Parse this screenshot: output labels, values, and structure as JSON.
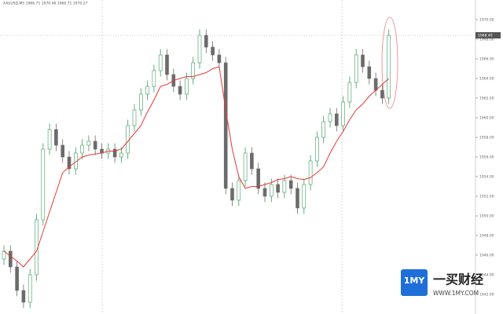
{
  "chart_data": {
    "type": "candlestick",
    "title": "XAUUSD,M5  1966.71 1970.46 1966.71 1970.27",
    "up_color": "#3c9a5f",
    "down_color": "#6b6b6b",
    "ma_color": "#e53935",
    "ylim": [
      1940,
      1972
    ],
    "yticks": [
      {
        "value": 1942,
        "label": "1942.00"
      },
      {
        "value": 1944,
        "label": "1944.00"
      },
      {
        "value": 1946,
        "label": "1946.00"
      },
      {
        "value": 1948,
        "label": "1948.00"
      },
      {
        "value": 1950,
        "label": "1950.00"
      },
      {
        "value": 1952,
        "label": "1952.00"
      },
      {
        "value": 1954,
        "label": "1954.00"
      },
      {
        "value": 1956,
        "label": "1956.00"
      },
      {
        "value": 1958,
        "label": "1958.00"
      },
      {
        "value": 1960,
        "label": "1960.00"
      },
      {
        "value": 1962,
        "label": "1962.00"
      },
      {
        "value": 1964,
        "label": "1964.00"
      },
      {
        "value": 1966,
        "label": "1966.00"
      },
      {
        "value": 1968,
        "label": "1968.00"
      },
      {
        "value": 1970,
        "label": "1970.00"
      }
    ],
    "last_price": {
      "value": 1968.4,
      "label": "1968.40"
    },
    "open": [
      1945.6,
      1946.4,
      1944.8,
      1942.4,
      1941.2,
      1944.0,
      1949.6,
      1956.8,
      1958.8,
      1957.2,
      1956.0,
      1954.8,
      1956.4,
      1957.2,
      1957.6,
      1956.8,
      1956.4,
      1956.8,
      1956.0,
      1956.4,
      1959.2,
      1960.8,
      1962.4,
      1963.2,
      1964.8,
      1966.4,
      1964.4,
      1963.2,
      1962.4,
      1964.0,
      1965.6,
      1968.4,
      1967.2,
      1966.4,
      1965.6,
      1952.8,
      1951.6,
      1953.6,
      1956.4,
      1954.8,
      1952.8,
      1952.0,
      1953.2,
      1952.4,
      1953.6,
      1952.8,
      1950.8,
      1953.2,
      1955.6,
      1958.0,
      1959.6,
      1960.4,
      1959.2,
      1961.6,
      1963.6,
      1966.4,
      1965.2,
      1964.0,
      1962.8,
      1962.0
    ],
    "high": [
      1947.0,
      1947.0,
      1945.4,
      1943.0,
      1944.6,
      1950.2,
      1957.4,
      1959.4,
      1959.4,
      1957.8,
      1956.6,
      1957.0,
      1957.8,
      1958.2,
      1958.2,
      1957.4,
      1957.4,
      1957.4,
      1957.0,
      1959.8,
      1961.4,
      1963.0,
      1963.8,
      1965.4,
      1967.0,
      1967.0,
      1965.0,
      1963.8,
      1964.6,
      1966.2,
      1969.0,
      1969.0,
      1967.8,
      1967.0,
      1966.2,
      1953.4,
      1954.2,
      1957.0,
      1957.0,
      1955.4,
      1953.4,
      1953.8,
      1953.8,
      1954.2,
      1954.2,
      1953.4,
      1953.8,
      1956.2,
      1958.6,
      1960.2,
      1961.0,
      1961.0,
      1962.2,
      1964.2,
      1967.0,
      1967.0,
      1965.8,
      1964.6,
      1963.4,
      1969.0
    ],
    "low": [
      1945.0,
      1944.2,
      1941.8,
      1940.6,
      1940.6,
      1943.4,
      1949.0,
      1956.2,
      1956.6,
      1955.4,
      1954.2,
      1954.2,
      1955.8,
      1956.6,
      1956.2,
      1955.8,
      1955.8,
      1955.4,
      1955.4,
      1955.8,
      1958.6,
      1960.2,
      1961.8,
      1962.6,
      1964.2,
      1963.8,
      1962.6,
      1961.8,
      1961.8,
      1963.4,
      1965.0,
      1966.6,
      1965.8,
      1965.0,
      1952.2,
      1951.0,
      1951.0,
      1953.0,
      1954.2,
      1952.2,
      1951.4,
      1951.4,
      1951.8,
      1951.8,
      1952.2,
      1950.2,
      1950.2,
      1952.6,
      1955.0,
      1957.4,
      1959.0,
      1958.6,
      1958.6,
      1961.0,
      1963.0,
      1964.6,
      1963.4,
      1962.2,
      1961.4,
      1961.4
    ],
    "close": [
      1946.4,
      1944.8,
      1942.4,
      1941.2,
      1944.0,
      1949.6,
      1956.8,
      1958.8,
      1957.2,
      1956.0,
      1954.8,
      1956.4,
      1957.2,
      1957.6,
      1956.8,
      1956.4,
      1956.8,
      1956.0,
      1956.4,
      1959.2,
      1960.8,
      1962.4,
      1963.2,
      1964.8,
      1966.4,
      1964.4,
      1963.2,
      1962.4,
      1964.0,
      1965.6,
      1968.4,
      1967.2,
      1966.4,
      1965.6,
      1952.8,
      1951.6,
      1953.6,
      1956.4,
      1954.8,
      1952.8,
      1952.0,
      1953.2,
      1952.4,
      1953.6,
      1952.8,
      1950.8,
      1953.2,
      1955.6,
      1958.0,
      1959.6,
      1960.4,
      1959.2,
      1961.6,
      1963.6,
      1966.4,
      1965.2,
      1964.0,
      1962.8,
      1962.0,
      1968.4
    ],
    "ma": [
      1946.4,
      1945.9,
      1945.4,
      1944.8,
      1945.6,
      1946.4,
      1948.4,
      1950.4,
      1952.4,
      1954.4,
      1955.0,
      1955.5,
      1956.0,
      1956.2,
      1956.3,
      1956.4,
      1956.6,
      1956.6,
      1956.8,
      1957.6,
      1958.4,
      1959.2,
      1960.6,
      1961.8,
      1963.2,
      1963.4,
      1963.8,
      1964.0,
      1964.2,
      1964.2,
      1964.4,
      1964.6,
      1965.0,
      1965.2,
      1960.8,
      1956.8,
      1954.0,
      1952.8,
      1953.0,
      1953.0,
      1953.2,
      1953.4,
      1953.7,
      1953.8,
      1954.0,
      1953.8,
      1953.7,
      1953.9,
      1954.4,
      1955.0,
      1956.4,
      1957.6,
      1958.6,
      1959.8,
      1960.8,
      1961.4,
      1962.2,
      1962.8,
      1963.4,
      1964.0
    ],
    "watermark": {
      "logo": "1MY",
      "name": "一买财经",
      "url": "WWW.1MY.COM"
    }
  }
}
